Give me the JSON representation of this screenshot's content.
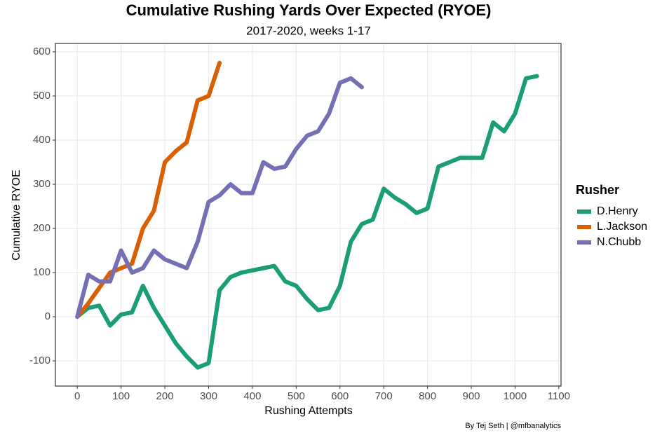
{
  "chart_data": {
    "type": "line",
    "title": "Cumulative Rushing Yards Over Expected (RYOE)",
    "subtitle": "2017-2020, weeks 1-17",
    "x_label": "Rushing Attempts",
    "y_label": "Cumulative RYOE",
    "caption": "By Tej Seth | @mfbanalytics",
    "legend_title": "Rusher",
    "legend_position": "right",
    "grid": true,
    "x": [
      0,
      25,
      50,
      75,
      100,
      125,
      150,
      175,
      200,
      225,
      250,
      275,
      300,
      325,
      350,
      375,
      400,
      425,
      450,
      475,
      500,
      525,
      550,
      575,
      600,
      625,
      650,
      675,
      700,
      725,
      750,
      775,
      800,
      825,
      850,
      875,
      900,
      925,
      950,
      975,
      1000,
      1025,
      1050
    ],
    "series": [
      {
        "name": "D.Henry",
        "color": "#1b9e77",
        "values": [
          0,
          20,
          25,
          -20,
          5,
          10,
          70,
          20,
          -20,
          -60,
          -90,
          -115,
          -105,
          60,
          90,
          100,
          105,
          110,
          115,
          80,
          70,
          40,
          15,
          20,
          70,
          170,
          210,
          220,
          290,
          270,
          255,
          235,
          245,
          340,
          350,
          360,
          360,
          360,
          440,
          420,
          460,
          540,
          545
        ]
      },
      {
        "name": "L.Jackson",
        "color": "#d95f02",
        "values": [
          0,
          30,
          65,
          100,
          110,
          120,
          200,
          240,
          350,
          375,
          395,
          490,
          500,
          575,
          null,
          null,
          null,
          null,
          null,
          null,
          null,
          null,
          null,
          null,
          null,
          null,
          null,
          null,
          null,
          null,
          null,
          null,
          null,
          null,
          null,
          null,
          null,
          null,
          null,
          null,
          null,
          null,
          null
        ]
      },
      {
        "name": "N.Chubb",
        "color": "#7570b3",
        "values": [
          0,
          95,
          80,
          80,
          150,
          100,
          110,
          150,
          130,
          120,
          110,
          170,
          260,
          275,
          300,
          280,
          280,
          350,
          335,
          340,
          380,
          410,
          420,
          460,
          530,
          540,
          520,
          null,
          null,
          null,
          null,
          null,
          null,
          null,
          null,
          null,
          null,
          null,
          null,
          null,
          null,
          null,
          null
        ]
      }
    ],
    "xlim": [
      -50,
      1105
    ],
    "ylim": [
      -157,
      619
    ],
    "xticks": [
      0,
      100,
      200,
      300,
      400,
      500,
      600,
      700,
      800,
      900,
      1000,
      1100
    ],
    "yticks": [
      -100,
      0,
      100,
      200,
      300,
      400,
      500,
      600
    ]
  }
}
